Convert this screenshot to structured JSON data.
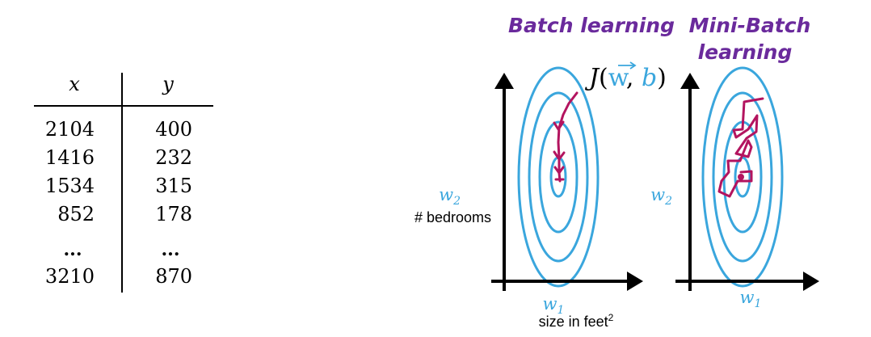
{
  "table": {
    "headers": [
      "x",
      "y"
    ],
    "rows": [
      [
        "2104",
        "400"
      ],
      [
        "1416",
        "232"
      ],
      [
        "1534",
        "315"
      ],
      [
        "852",
        "178"
      ],
      [
        "...",
        "..."
      ],
      [
        "3210",
        "870"
      ]
    ]
  },
  "batch_plot": {
    "title": "Batch learning",
    "cost_label": {
      "J": "J",
      "w": "w",
      "b": "b"
    },
    "y_label_var": "w",
    "y_label_sub": "2",
    "y_label_text": "# bedrooms",
    "x_label_var": "w",
    "x_label_sub": "1",
    "x_label_text": "size in feet",
    "x_label_sup": "2"
  },
  "minibatch_plot": {
    "title_line1": "Mini-Batch",
    "title_line2": "learning",
    "y_label_var": "w",
    "y_label_sub": "2",
    "x_label_var": "w",
    "x_label_sub": "1"
  },
  "colors": {
    "contour": "#3aa6dd",
    "path": "#b3145f",
    "title": "#6a2a9c",
    "axis": "#000000",
    "var_label": "#3aa6dd"
  }
}
